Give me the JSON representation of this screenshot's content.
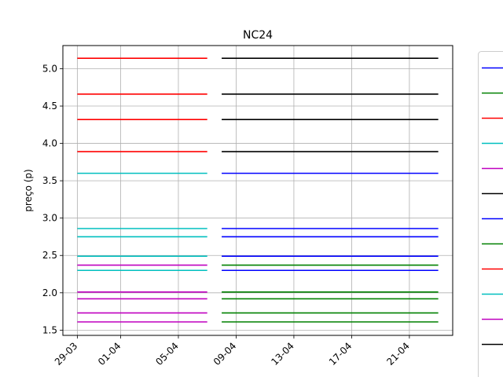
{
  "chart_data": {
    "type": "line",
    "title": "NC24",
    "xlabel": "",
    "ylabel": "preço (p)",
    "x_ticks": [
      "29-03",
      "01-04",
      "05-04",
      "09-04",
      "13-04",
      "17-04",
      "21-04"
    ],
    "y_ticks": [
      "1.5",
      "2.0",
      "2.5",
      "3.0",
      "3.5",
      "4.0",
      "4.5",
      "5.0"
    ],
    "xlim": [
      "2024-03-28",
      "2024-04-24"
    ],
    "ylim": [
      1.43,
      5.31
    ],
    "grid": true,
    "legend_position": "right",
    "segments": [
      {
        "x0": "2024-03-29",
        "x1": "2024-04-07",
        "y": 5.14,
        "color": "#ff0000"
      },
      {
        "x0": "2024-03-29",
        "x1": "2024-04-07",
        "y": 4.66,
        "color": "#ff0000"
      },
      {
        "x0": "2024-03-29",
        "x1": "2024-04-07",
        "y": 4.32,
        "color": "#ff0000"
      },
      {
        "x0": "2024-03-29",
        "x1": "2024-04-07",
        "y": 3.89,
        "color": "#ff0000"
      },
      {
        "x0": "2024-03-29",
        "x1": "2024-04-07",
        "y": 3.6,
        "color": "#00bfbf"
      },
      {
        "x0": "2024-03-29",
        "x1": "2024-04-07",
        "y": 2.86,
        "color": "#00bfbf"
      },
      {
        "x0": "2024-03-29",
        "x1": "2024-04-07",
        "y": 2.75,
        "color": "#00bfbf"
      },
      {
        "x0": "2024-03-29",
        "x1": "2024-04-07",
        "y": 2.49,
        "color": "#00bfbf"
      },
      {
        "x0": "2024-03-29",
        "x1": "2024-04-07",
        "y": 2.37,
        "color": "#bf00bf"
      },
      {
        "x0": "2024-03-29",
        "x1": "2024-04-07",
        "y": 2.3,
        "color": "#00bfbf"
      },
      {
        "x0": "2024-03-29",
        "x1": "2024-04-07",
        "y": 2.01,
        "color": "#bf00bf"
      },
      {
        "x0": "2024-03-29",
        "x1": "2024-04-07",
        "y": 1.92,
        "color": "#bf00bf"
      },
      {
        "x0": "2024-03-29",
        "x1": "2024-04-07",
        "y": 1.73,
        "color": "#bf00bf"
      },
      {
        "x0": "2024-03-29",
        "x1": "2024-04-07",
        "y": 1.61,
        "color": "#bf00bf"
      },
      {
        "x0": "2024-04-08",
        "x1": "2024-04-23",
        "y": 5.14,
        "color": "#000000"
      },
      {
        "x0": "2024-04-08",
        "x1": "2024-04-23",
        "y": 4.66,
        "color": "#000000"
      },
      {
        "x0": "2024-04-08",
        "x1": "2024-04-23",
        "y": 4.32,
        "color": "#000000"
      },
      {
        "x0": "2024-04-08",
        "x1": "2024-04-23",
        "y": 3.89,
        "color": "#000000"
      },
      {
        "x0": "2024-04-08",
        "x1": "2024-04-23",
        "y": 3.6,
        "color": "#0000ff"
      },
      {
        "x0": "2024-04-08",
        "x1": "2024-04-23",
        "y": 2.86,
        "color": "#0000ff"
      },
      {
        "x0": "2024-04-08",
        "x1": "2024-04-23",
        "y": 2.75,
        "color": "#0000ff"
      },
      {
        "x0": "2024-04-08",
        "x1": "2024-04-23",
        "y": 2.49,
        "color": "#0000ff"
      },
      {
        "x0": "2024-04-08",
        "x1": "2024-04-23",
        "y": 2.37,
        "color": "#008000"
      },
      {
        "x0": "2024-04-08",
        "x1": "2024-04-23",
        "y": 2.3,
        "color": "#0000ff"
      },
      {
        "x0": "2024-04-08",
        "x1": "2024-04-23",
        "y": 2.01,
        "color": "#008000"
      },
      {
        "x0": "2024-04-08",
        "x1": "2024-04-23",
        "y": 1.92,
        "color": "#008000"
      },
      {
        "x0": "2024-04-08",
        "x1": "2024-04-23",
        "y": 1.73,
        "color": "#008000"
      },
      {
        "x0": "2024-04-08",
        "x1": "2024-04-23",
        "y": 1.61,
        "color": "#008000"
      }
    ],
    "legend_entries": [
      {
        "color": "#0000ff"
      },
      {
        "color": "#008000"
      },
      {
        "color": "#ff0000"
      },
      {
        "color": "#00bfbf"
      },
      {
        "color": "#bf00bf"
      },
      {
        "color": "#000000"
      },
      {
        "color": "#0000ff"
      },
      {
        "color": "#008000"
      },
      {
        "color": "#ff0000"
      },
      {
        "color": "#00bfbf"
      },
      {
        "color": "#bf00bf"
      },
      {
        "color": "#000000"
      }
    ]
  }
}
